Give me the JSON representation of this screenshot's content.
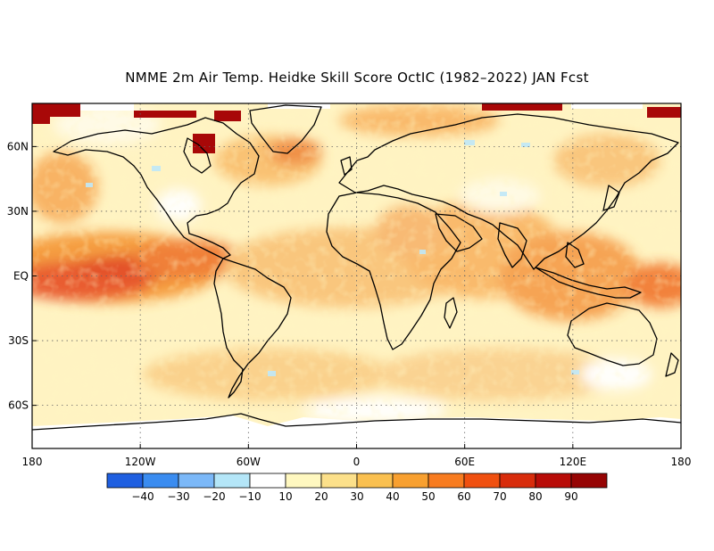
{
  "title": "NMME 2m Air Temp. Heidke Skill Score OctIC (1982–2022) JAN Fcst",
  "map": {
    "projection": "equirectangular",
    "lon_range": [
      -180,
      180
    ],
    "lat_range": [
      -80,
      80
    ],
    "lat_ticks": [
      {
        "value": 60,
        "label": "60N"
      },
      {
        "value": 30,
        "label": "30N"
      },
      {
        "value": 0,
        "label": "EQ"
      },
      {
        "value": -30,
        "label": "30S"
      },
      {
        "value": -60,
        "label": "60S"
      }
    ],
    "lon_ticks": [
      {
        "value": -180,
        "label": "180"
      },
      {
        "value": -120,
        "label": "120W"
      },
      {
        "value": -60,
        "label": "60W"
      },
      {
        "value": 0,
        "label": "0"
      },
      {
        "value": 60,
        "label": "60E"
      },
      {
        "value": 120,
        "label": "120E"
      },
      {
        "value": 180,
        "label": "180"
      }
    ],
    "grid": "dotted"
  },
  "colorbar": {
    "colors": [
      "#1f5fe0",
      "#3a8cf0",
      "#7bb8f8",
      "#b4e6f8",
      "#ffffff",
      "#fff8c0",
      "#fce08a",
      "#fac050",
      "#f8a030",
      "#f87c20",
      "#f05010",
      "#d82c0c",
      "#b80c08",
      "#960404"
    ],
    "labels": [
      "−40",
      "−30",
      "−20",
      "−10",
      "10",
      "20",
      "30",
      "40",
      "50",
      "60",
      "70",
      "80",
      "90"
    ]
  }
}
